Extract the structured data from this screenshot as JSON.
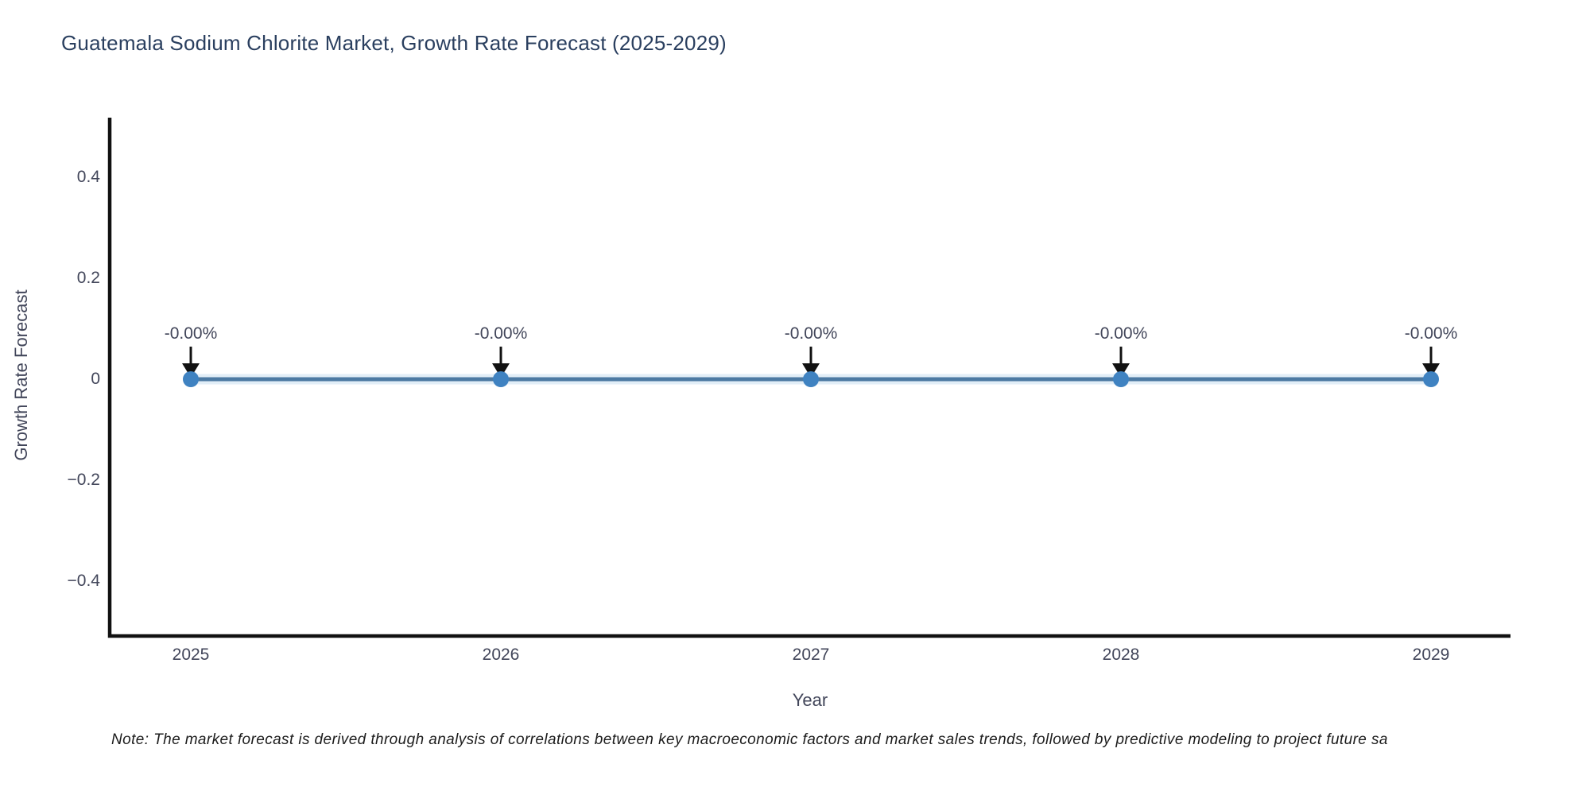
{
  "note": "Note: The market forecast is derived through analysis of correlations between key macroeconomic factors and market sales trends, followed by predictive modeling to project future sa",
  "chart_data": {
    "type": "line",
    "title": "Guatemala Sodium Chlorite Market, Growth Rate Forecast (2025-2029)",
    "xlabel": "Year",
    "ylabel": "Growth Rate Forecast",
    "x": [
      2025,
      2026,
      2027,
      2028,
      2029
    ],
    "series": [
      {
        "name": "Growth Rate Forecast",
        "values": [
          0,
          0,
          0,
          0,
          0
        ]
      }
    ],
    "point_labels": [
      "-0.00%",
      "-0.00%",
      "-0.00%",
      "-0.00%",
      "-0.00%"
    ],
    "x_tick_labels": [
      "2025",
      "2026",
      "2027",
      "2028",
      "2029"
    ],
    "y_tick_labels": [
      "0.4",
      "0.2",
      "0",
      "−0.2",
      "−0.4"
    ],
    "y_tick_values": [
      0.4,
      0.2,
      0,
      -0.2,
      -0.4
    ],
    "ylim": [
      -0.51,
      0.52
    ],
    "grid": false,
    "legend": "none",
    "marker_shape": "circle",
    "annotation_arrows": "down-arrow-to-point",
    "colors": {
      "line": "#4d7aa3",
      "line_halo": "#cfe3f2",
      "marker": "#3f82c1",
      "axis": "#111111",
      "arrow": "#111111",
      "tick_text": "#42465a",
      "title_text": "#2a3f5f",
      "note_text": "#1c1c1c"
    }
  }
}
